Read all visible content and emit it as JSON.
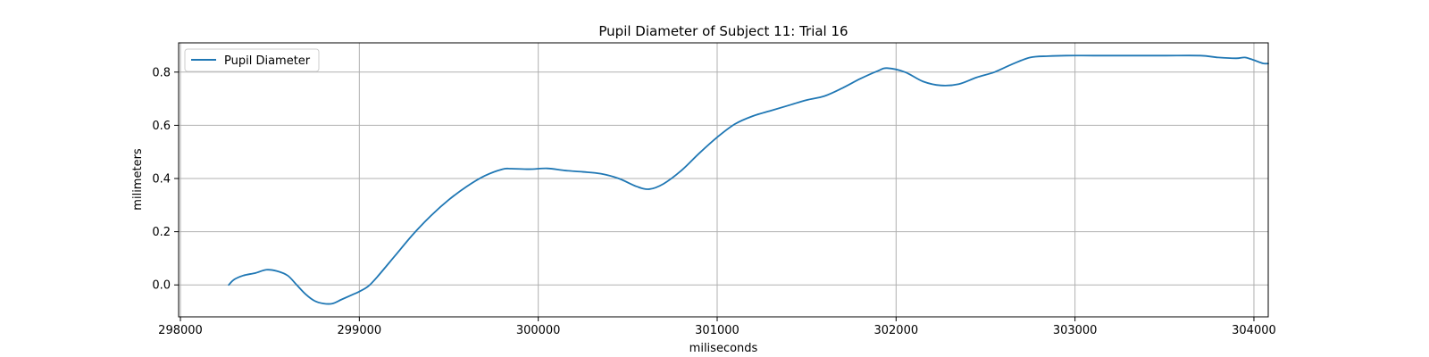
{
  "chart_data": {
    "type": "line",
    "title": "Pupil Diameter of Subject 11: Trial 16",
    "xlabel": "miliseconds",
    "ylabel": "milimeters",
    "xlim": [
      297990,
      304080
    ],
    "ylim": [
      -0.12,
      0.91
    ],
    "xticks": [
      298000,
      299000,
      300000,
      301000,
      302000,
      303000,
      304000
    ],
    "xtick_labels": [
      "298000",
      "299000",
      "300000",
      "301000",
      "302000",
      "303000",
      "304000"
    ],
    "yticks": [
      0.0,
      0.2,
      0.4,
      0.6,
      0.8
    ],
    "ytick_labels": [
      "0.0",
      "0.2",
      "0.4",
      "0.6",
      "0.8"
    ],
    "grid": true,
    "legend_position": "top-left",
    "series": [
      {
        "name": "Pupil Diameter",
        "color": "#1f77b4",
        "x": [
          298270,
          298300,
          298350,
          298420,
          298480,
          298540,
          298600,
          298650,
          298700,
          298750,
          298800,
          298850,
          298900,
          298950,
          299000,
          299050,
          299100,
          299200,
          299300,
          299400,
          299500,
          299600,
          299700,
          299800,
          299850,
          299950,
          300050,
          300150,
          300250,
          300350,
          300450,
          300550,
          300620,
          300700,
          300800,
          300900,
          301000,
          301100,
          301200,
          301300,
          301400,
          301500,
          301600,
          301700,
          301800,
          301900,
          301950,
          302050,
          302150,
          302250,
          302350,
          302450,
          302550,
          302650,
          302750,
          302850,
          302950,
          303100,
          303300,
          303500,
          303700,
          303800,
          303900,
          303950,
          304000,
          304050,
          304080
        ],
        "y": [
          0.0,
          0.02,
          0.035,
          0.045,
          0.057,
          0.052,
          0.035,
          0.0,
          -0.035,
          -0.06,
          -0.07,
          -0.07,
          -0.055,
          -0.04,
          -0.025,
          -0.005,
          0.03,
          0.11,
          0.19,
          0.26,
          0.32,
          0.37,
          0.41,
          0.435,
          0.437,
          0.435,
          0.438,
          0.43,
          0.425,
          0.418,
          0.4,
          0.37,
          0.36,
          0.38,
          0.43,
          0.495,
          0.555,
          0.605,
          0.635,
          0.655,
          0.675,
          0.695,
          0.71,
          0.74,
          0.775,
          0.805,
          0.815,
          0.8,
          0.765,
          0.75,
          0.755,
          0.78,
          0.8,
          0.83,
          0.855,
          0.86,
          0.862,
          0.862,
          0.862,
          0.862,
          0.862,
          0.855,
          0.852,
          0.855,
          0.845,
          0.833,
          0.832
        ]
      }
    ]
  }
}
